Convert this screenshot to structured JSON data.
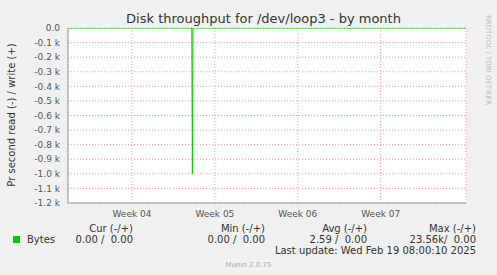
{
  "chart_data": {
    "type": "line",
    "title": "Disk throughput for /dev/loop3 - by month",
    "y_label": "Pr second read (-) / write (+)",
    "x": [
      0,
      10.45,
      10.5,
      10.55,
      33.6
    ],
    "series": [
      {
        "name": "Bytes",
        "color": "#00cc00",
        "values": [
          0,
          0,
          -1000,
          0,
          0
        ]
      }
    ],
    "xlim": [
      0,
      33.6
    ],
    "xticks": [
      {
        "value": 5.4,
        "label": "Week 04"
      },
      {
        "value": 12.4,
        "label": "Week 05"
      },
      {
        "value": 19.4,
        "label": "Week 06"
      },
      {
        "value": 26.4,
        "label": "Week 07"
      }
    ],
    "ylim": [
      -1200,
      0
    ],
    "yticks": [
      {
        "value": 0,
        "label": "0.0"
      },
      {
        "value": -100,
        "label": "-0.1 k"
      },
      {
        "value": -200,
        "label": "-0.2 k"
      },
      {
        "value": -300,
        "label": "-0.3 k"
      },
      {
        "value": -400,
        "label": "-0.4 k"
      },
      {
        "value": -500,
        "label": "-0.5 k"
      },
      {
        "value": -600,
        "label": "-0.6 k"
      },
      {
        "value": -700,
        "label": "-0.7 k"
      },
      {
        "value": -800,
        "label": "-0.8 k"
      },
      {
        "value": -900,
        "label": "-0.9 k"
      },
      {
        "value": -1000,
        "label": "-1.0 k"
      },
      {
        "value": -1100,
        "label": "-1.1 k"
      },
      {
        "value": -1200,
        "label": "-1.2 k"
      }
    ],
    "grid": true,
    "legend_table": {
      "headers": [
        "Cur (-/+)",
        "Min (-/+)",
        "Avg (-/+)",
        "Max (-/+)"
      ],
      "rows": [
        {
          "name": "Bytes",
          "cells": [
            "0.00 /  0.00",
            "0.00 /  0.00",
            "2.59 /  0.00",
            "23.56k/  0.00"
          ]
        }
      ]
    },
    "annotations": [
      "Last update: Wed Feb 19 08:00:10 2025",
      "Munin 2.0.75",
      "RRDTOOL / TOBI OETIKER"
    ]
  }
}
